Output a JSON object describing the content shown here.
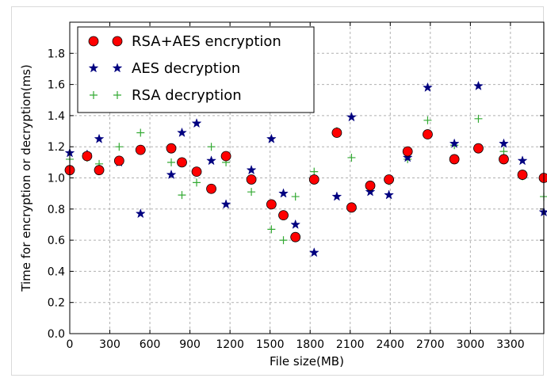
{
  "chart_data": {
    "type": "scatter",
    "xlabel": "File size(MB)",
    "ylabel": "Time for encryption or decryption(ms)",
    "xlim": [
      0,
      3550
    ],
    "ylim": [
      0,
      2.0
    ],
    "xticks": [
      0,
      300,
      600,
      900,
      1200,
      1500,
      1800,
      2100,
      2400,
      2700,
      3000,
      3300
    ],
    "yticks": [
      0.0,
      0.2,
      0.4,
      0.6,
      0.8,
      1.0,
      1.2,
      1.4,
      1.6,
      1.8
    ],
    "grid": true,
    "legend_position": "top-left",
    "series": [
      {
        "name": "RSA+AES encryption",
        "marker": "circle",
        "color": "#ff0000",
        "points": [
          [
            0,
            1.05
          ],
          [
            130,
            1.14
          ],
          [
            220,
            1.05
          ],
          [
            370,
            1.11
          ],
          [
            530,
            1.18
          ],
          [
            760,
            1.19
          ],
          [
            840,
            1.1
          ],
          [
            950,
            1.04
          ],
          [
            1060,
            0.93
          ],
          [
            1170,
            1.14
          ],
          [
            1360,
            0.99
          ],
          [
            1510,
            0.83
          ],
          [
            1600,
            0.76
          ],
          [
            1690,
            0.62
          ],
          [
            1830,
            0.99
          ],
          [
            2000,
            1.29
          ],
          [
            2110,
            0.81
          ],
          [
            2250,
            0.95
          ],
          [
            2390,
            0.99
          ],
          [
            2530,
            1.17
          ],
          [
            2680,
            1.28
          ],
          [
            2880,
            1.12
          ],
          [
            3060,
            1.19
          ],
          [
            3250,
            1.12
          ],
          [
            3390,
            1.02
          ],
          [
            3550,
            1.0
          ]
        ]
      },
      {
        "name": "AES decryption",
        "marker": "star",
        "color": "#000080",
        "points": [
          [
            0,
            1.16
          ],
          [
            130,
            1.15
          ],
          [
            220,
            1.25
          ],
          [
            370,
            1.1
          ],
          [
            530,
            0.77
          ],
          [
            760,
            1.02
          ],
          [
            840,
            1.29
          ],
          [
            950,
            1.35
          ],
          [
            1060,
            1.11
          ],
          [
            1170,
            0.83
          ],
          [
            1360,
            1.05
          ],
          [
            1510,
            1.25
          ],
          [
            1600,
            0.9
          ],
          [
            1690,
            0.7
          ],
          [
            1830,
            0.52
          ],
          [
            2000,
            0.88
          ],
          [
            2110,
            1.39
          ],
          [
            2250,
            0.91
          ],
          [
            2390,
            0.89
          ],
          [
            2530,
            1.13
          ],
          [
            2680,
            1.58
          ],
          [
            2880,
            1.22
          ],
          [
            3060,
            1.59
          ],
          [
            3250,
            1.22
          ],
          [
            3390,
            1.11
          ],
          [
            3550,
            0.78
          ]
        ]
      },
      {
        "name": "RSA decryption",
        "marker": "plus",
        "color": "#33aa33",
        "points": [
          [
            0,
            1.12
          ],
          [
            130,
            1.13
          ],
          [
            220,
            1.09
          ],
          [
            370,
            1.2
          ],
          [
            530,
            1.29
          ],
          [
            760,
            1.1
          ],
          [
            840,
            0.89
          ],
          [
            950,
            0.97
          ],
          [
            1060,
            1.2
          ],
          [
            1170,
            1.1
          ],
          [
            1360,
            0.91
          ],
          [
            1510,
            0.67
          ],
          [
            1600,
            0.6
          ],
          [
            1690,
            0.88
          ],
          [
            1830,
            1.04
          ],
          [
            2000,
            1.3
          ],
          [
            2110,
            1.13
          ],
          [
            2250,
            0.93
          ],
          [
            2390,
            0.98
          ],
          [
            2530,
            1.12
          ],
          [
            2680,
            1.37
          ],
          [
            2880,
            1.21
          ],
          [
            3060,
            1.38
          ],
          [
            3250,
            1.17
          ],
          [
            3390,
            1.01
          ],
          [
            3550,
            0.88
          ]
        ]
      }
    ]
  }
}
